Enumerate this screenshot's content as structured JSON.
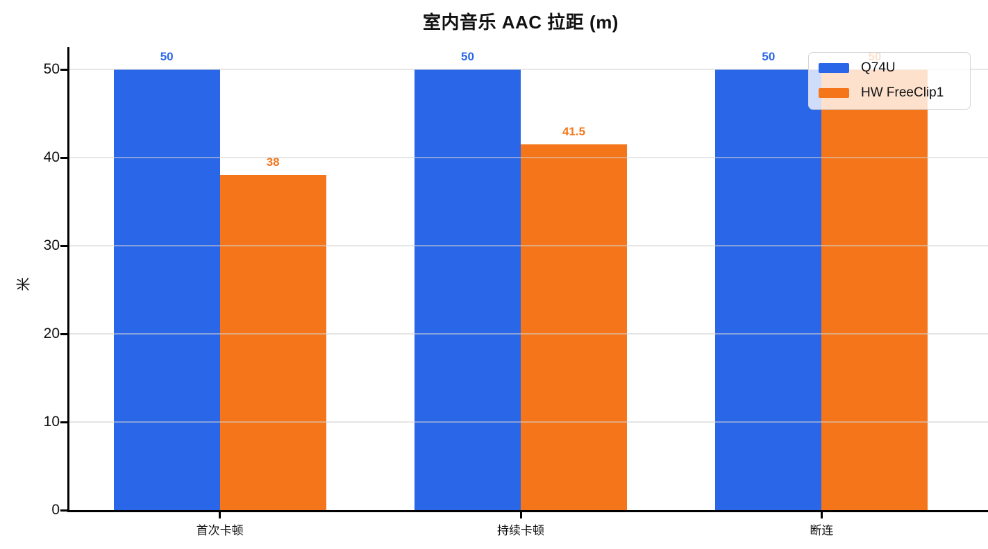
{
  "chart_data": {
    "type": "bar",
    "title": "室内音乐 AAC 拉距 (m)",
    "ylabel": "米",
    "xlabel": "",
    "categories": [
      "首次卡顿",
      "持续卡顿",
      "断连"
    ],
    "series": [
      {
        "name": "Q74U",
        "color": "#2a66e8",
        "values": [
          50,
          50,
          50
        ],
        "value_labels": [
          "50",
          "50",
          "50"
        ]
      },
      {
        "name": "HW FreeClip1",
        "color": "#f5761a",
        "values": [
          38,
          41.5,
          50
        ],
        "value_labels": [
          "38",
          "41.5",
          "50"
        ]
      }
    ],
    "ylim": [
      0,
      50
    ],
    "yticks": [
      0,
      10,
      20,
      30,
      40,
      50
    ],
    "grid": "horizontal, drawn over bars",
    "legend_position": "top-right",
    "colors": {
      "q74u": "#2a66e8",
      "hw_freeclip1": "#f5761a",
      "axis": "#000000",
      "gridline": "#d2d2d2",
      "background": "#ffffff"
    }
  }
}
